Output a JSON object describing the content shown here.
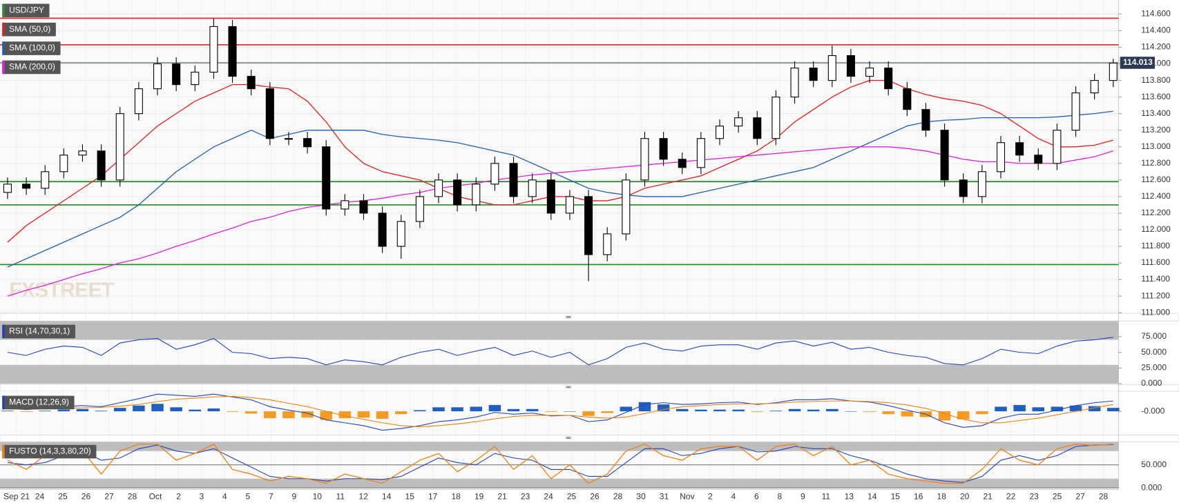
{
  "chart_data": {
    "type": "candlestick",
    "symbol": "USD/JPY",
    "ylim": [
      111,
      114.77
    ],
    "yticks": [
      {
        "value": 111,
        "label": "111.000"
      },
      {
        "value": 111.2,
        "label": "111.200"
      },
      {
        "value": 111.4,
        "label": "111.400"
      },
      {
        "value": 111.6,
        "label": "111.600"
      },
      {
        "value": 111.8,
        "label": "111.800"
      },
      {
        "value": 112,
        "label": "112.000"
      },
      {
        "value": 112.2,
        "label": "112.200"
      },
      {
        "value": 112.4,
        "label": "112.400"
      },
      {
        "value": 112.6,
        "label": "112.600"
      },
      {
        "value": 112.8,
        "label": "112.800"
      },
      {
        "value": 113,
        "label": "113.000"
      },
      {
        "value": 113.2,
        "label": "113.200"
      },
      {
        "value": 113.4,
        "label": "113.400"
      },
      {
        "value": 113.6,
        "label": "113.600"
      },
      {
        "value": 113.8,
        "label": "113.800"
      },
      {
        "value": 114,
        "label": "114.000"
      },
      {
        "value": 114.2,
        "label": "114.200"
      },
      {
        "value": 114.4,
        "label": "114.400"
      },
      {
        "value": 114.6,
        "label": "114.600"
      }
    ],
    "last": {
      "value": 114.013,
      "label": "114.013"
    },
    "colors": {
      "up": "#ffffff",
      "down": "#000000",
      "wick": "#000000"
    },
    "levels": [
      {
        "value": 114.55,
        "color": "#e02020"
      },
      {
        "value": 114.23,
        "color": "#e02020"
      },
      {
        "value": 112.58,
        "color": "#1a8a1a"
      },
      {
        "value": 112.3,
        "color": "#1a8a1a"
      },
      {
        "value": 111.58,
        "color": "#1a8a1a"
      }
    ],
    "xlabels": [
      "Sep 21",
      "24",
      "25",
      "26",
      "27",
      "28",
      "Oct",
      "2",
      "3",
      "4",
      "5",
      "7",
      "9",
      "10",
      "11",
      "12",
      "14",
      "15",
      "17",
      "18",
      "19",
      "21",
      "23",
      "24",
      "25",
      "26",
      "28",
      "30",
      "31",
      "Nov",
      "2",
      "4",
      "6",
      "8",
      "9",
      "11",
      "13",
      "14",
      "15",
      "16",
      "18",
      "20",
      "21",
      "22",
      "23",
      "25",
      "27",
      "28"
    ],
    "open": [
      112.45,
      112.55,
      112.5,
      112.7,
      112.9,
      112.95,
      112.6,
      113.4,
      113.7,
      114.0,
      113.75,
      113.9,
      114.45,
      113.85,
      113.7,
      113.1,
      113.1,
      113.0,
      112.25,
      112.35,
      112.2,
      111.8,
      112.1,
      112.4,
      112.6,
      112.3,
      112.55,
      112.8,
      112.4,
      112.6,
      112.2,
      112.4,
      111.7,
      111.95,
      112.6,
      113.1,
      112.85,
      112.75,
      113.1,
      113.25,
      113.35,
      113.1,
      113.6,
      113.95,
      113.8,
      114.1,
      113.85,
      113.95,
      113.7,
      113.45,
      113.2,
      112.6,
      112.4,
      112.7,
      113.05,
      112.9,
      112.8,
      113.2,
      113.65,
      113.8
    ],
    "high": [
      112.63,
      112.63,
      112.78,
      112.98,
      113.03,
      113.03,
      113.48,
      113.78,
      114.08,
      114.08,
      113.98,
      114.55,
      114.53,
      113.93,
      113.78,
      113.18,
      113.18,
      113.08,
      112.43,
      112.43,
      112.28,
      112.18,
      112.48,
      112.68,
      112.68,
      112.63,
      112.88,
      112.88,
      112.68,
      112.68,
      112.48,
      112.48,
      112.03,
      112.68,
      113.18,
      113.18,
      112.93,
      113.18,
      113.33,
      113.43,
      113.43,
      113.68,
      114.03,
      114.03,
      114.22,
      114.18,
      114.03,
      114.03,
      113.78,
      113.53,
      113.28,
      112.68,
      112.78,
      113.13,
      113.13,
      112.98,
      113.28,
      113.73,
      113.88,
      114.06
    ],
    "low": [
      112.37,
      112.42,
      112.42,
      112.62,
      112.82,
      112.52,
      112.52,
      113.32,
      113.62,
      113.67,
      113.67,
      113.82,
      113.77,
      113.62,
      113.02,
      113.02,
      112.92,
      112.17,
      112.17,
      112.12,
      111.72,
      111.65,
      112.02,
      112.32,
      112.22,
      112.22,
      112.47,
      112.32,
      112.32,
      112.12,
      112.12,
      111.38,
      111.62,
      111.87,
      112.52,
      112.77,
      112.67,
      112.67,
      113.02,
      113.17,
      113.02,
      113.02,
      113.52,
      113.72,
      113.72,
      113.77,
      113.77,
      113.62,
      113.37,
      113.12,
      112.52,
      112.32,
      112.32,
      112.62,
      112.82,
      112.72,
      112.72,
      113.12,
      113.57,
      113.72
    ],
    "close": [
      112.55,
      112.5,
      112.7,
      112.9,
      112.95,
      112.6,
      113.4,
      113.7,
      114.0,
      113.75,
      113.9,
      114.45,
      113.85,
      113.7,
      113.1,
      113.1,
      113.0,
      112.25,
      112.35,
      112.2,
      111.8,
      112.1,
      112.4,
      112.6,
      112.3,
      112.55,
      112.8,
      112.4,
      112.6,
      112.2,
      112.4,
      111.7,
      111.95,
      112.6,
      113.1,
      112.85,
      112.75,
      113.1,
      113.25,
      113.35,
      113.1,
      113.6,
      113.95,
      113.8,
      114.1,
      113.85,
      113.95,
      113.7,
      113.45,
      113.2,
      112.6,
      112.4,
      112.7,
      113.05,
      112.9,
      112.8,
      113.2,
      113.65,
      113.8,
      114.01
    ],
    "series": [
      {
        "name": "USD/JPY",
        "color": "#2e8b2e",
        "legend_only": true
      },
      {
        "name": "SMA (50,0)",
        "color": "#e02020",
        "values": [
          111.85,
          112.05,
          112.2,
          112.35,
          112.5,
          112.65,
          112.85,
          113.05,
          113.25,
          113.4,
          113.55,
          113.65,
          113.75,
          113.75,
          113.72,
          113.7,
          113.55,
          113.3,
          113.0,
          112.8,
          112.7,
          112.65,
          112.6,
          112.5,
          112.4,
          112.35,
          112.3,
          112.3,
          112.35,
          112.4,
          112.4,
          112.35,
          112.35,
          112.4,
          112.5,
          112.55,
          112.6,
          112.65,
          112.75,
          112.85,
          112.95,
          113.1,
          113.3,
          113.45,
          113.6,
          113.72,
          113.8,
          113.8,
          113.7,
          113.63,
          113.58,
          113.55,
          113.5,
          113.4,
          113.25,
          113.1,
          113.0,
          113.0,
          113.02,
          113.08
        ]
      },
      {
        "name": "SMA (100,0)",
        "color": "#2060b0",
        "values": [
          111.55,
          111.65,
          111.75,
          111.85,
          111.95,
          112.05,
          112.15,
          112.3,
          112.5,
          112.7,
          112.85,
          113.0,
          113.1,
          113.2,
          113.1,
          113.15,
          113.2,
          113.2,
          113.2,
          113.2,
          113.15,
          113.12,
          113.1,
          113.08,
          113.05,
          113.0,
          112.95,
          112.9,
          112.8,
          112.7,
          112.6,
          112.5,
          112.45,
          112.42,
          112.4,
          112.4,
          112.4,
          112.45,
          112.5,
          112.55,
          112.6,
          112.65,
          112.7,
          112.75,
          112.85,
          112.95,
          113.05,
          113.15,
          113.25,
          113.3,
          113.32,
          113.33,
          113.35,
          113.35,
          113.35,
          113.35,
          113.36,
          113.38,
          113.4,
          113.43
        ]
      },
      {
        "name": "SMA (200,0)",
        "color": "#e020e0",
        "values": [
          111.2,
          111.27,
          111.33,
          111.4,
          111.47,
          111.53,
          111.6,
          111.65,
          111.72,
          111.8,
          111.87,
          111.95,
          112.02,
          112.1,
          112.15,
          112.22,
          112.27,
          112.3,
          112.33,
          112.35,
          112.38,
          112.42,
          112.45,
          112.5,
          112.53,
          112.56,
          112.6,
          112.63,
          112.66,
          112.68,
          112.7,
          112.72,
          112.74,
          112.76,
          112.78,
          112.8,
          112.82,
          112.84,
          112.86,
          112.88,
          112.9,
          112.92,
          112.94,
          112.96,
          112.98,
          113.0,
          113.0,
          113.0,
          112.98,
          112.95,
          112.9,
          112.85,
          112.82,
          112.82,
          112.8,
          112.8,
          112.8,
          112.84,
          112.88,
          112.95
        ]
      }
    ],
    "watermark": "FXSTREET"
  },
  "rsi": {
    "name": "RSI (14,70,30,1)",
    "color": "#2040c0",
    "ylim": [
      0,
      100
    ],
    "bands": [
      30,
      70
    ],
    "yticks": [
      {
        "value": 0,
        "label": "0.000"
      },
      {
        "value": 25,
        "label": "25.000"
      },
      {
        "value": 50,
        "label": "50.000"
      },
      {
        "value": 75,
        "label": "75.000"
      }
    ],
    "values": [
      50,
      45,
      55,
      60,
      58,
      45,
      65,
      70,
      72,
      55,
      62,
      72,
      50,
      48,
      40,
      42,
      40,
      30,
      38,
      35,
      30,
      42,
      50,
      55,
      45,
      52,
      58,
      45,
      52,
      42,
      50,
      30,
      40,
      58,
      65,
      55,
      52,
      60,
      62,
      62,
      55,
      65,
      68,
      60,
      66,
      55,
      58,
      50,
      45,
      42,
      32,
      30,
      40,
      55,
      50,
      48,
      60,
      68,
      70,
      74
    ]
  },
  "macd": {
    "name": "MACD (12,26,9)",
    "ylim": [
      -0.4,
      0.35
    ],
    "yticks": [
      {
        "value": 0,
        "label": "-0.000"
      }
    ],
    "colors": {
      "macd": "#2040c0",
      "signal": "#f08010",
      "up": "#1f5fbf",
      "down": "#f59a23"
    },
    "macd_values": [
      0.05,
      0.03,
      0.05,
      0.08,
      0.1,
      0.08,
      0.15,
      0.22,
      0.3,
      0.28,
      0.26,
      0.3,
      0.25,
      0.2,
      0.08,
      0.02,
      -0.03,
      -0.15,
      -0.2,
      -0.25,
      -0.33,
      -0.3,
      -0.25,
      -0.18,
      -0.15,
      -0.1,
      -0.02,
      -0.05,
      -0.03,
      -0.08,
      -0.07,
      -0.18,
      -0.15,
      -0.02,
      0.12,
      0.15,
      0.12,
      0.13,
      0.15,
      0.16,
      0.12,
      0.15,
      0.2,
      0.2,
      0.22,
      0.18,
      0.16,
      0.1,
      0.02,
      -0.05,
      -0.2,
      -0.28,
      -0.25,
      -0.12,
      -0.05,
      -0.05,
      0.02,
      0.1,
      0.15,
      0.18
    ],
    "signal_values": [
      0.04,
      0.04,
      0.04,
      0.05,
      0.06,
      0.07,
      0.09,
      0.12,
      0.17,
      0.21,
      0.23,
      0.25,
      0.26,
      0.24,
      0.2,
      0.14,
      0.08,
      0.0,
      -0.08,
      -0.14,
      -0.2,
      -0.25,
      -0.27,
      -0.25,
      -0.22,
      -0.18,
      -0.13,
      -0.09,
      -0.07,
      -0.07,
      -0.07,
      -0.1,
      -0.12,
      -0.1,
      -0.04,
      0.03,
      0.08,
      0.1,
      0.12,
      0.13,
      0.13,
      0.14,
      0.16,
      0.17,
      0.18,
      0.18,
      0.17,
      0.15,
      0.11,
      0.05,
      -0.04,
      -0.14,
      -0.2,
      -0.2,
      -0.16,
      -0.12,
      -0.06,
      0.0,
      0.06,
      0.12
    ],
    "histogram": [
      0.01,
      -0.01,
      0.01,
      0.03,
      0.04,
      0.01,
      0.06,
      0.1,
      0.13,
      0.07,
      0.03,
      0.05,
      -0.01,
      -0.04,
      -0.12,
      -0.12,
      -0.11,
      -0.15,
      -0.12,
      -0.11,
      -0.13,
      -0.05,
      0.02,
      0.07,
      0.07,
      0.08,
      0.11,
      0.04,
      0.04,
      -0.01,
      0.0,
      -0.08,
      -0.03,
      0.08,
      0.16,
      0.12,
      0.04,
      0.03,
      0.03,
      0.03,
      -0.01,
      0.01,
      0.04,
      0.03,
      0.04,
      0.0,
      -0.01,
      -0.05,
      -0.09,
      -0.1,
      -0.16,
      -0.14,
      -0.05,
      0.08,
      0.11,
      0.07,
      0.08,
      0.1,
      0.09,
      0.06
    ]
  },
  "stoch": {
    "name": "FUSTO (14,3,3,80,20)",
    "ylim": [
      0,
      100
    ],
    "bands": [
      20,
      80
    ],
    "yticks": [
      {
        "value": 0,
        "label": "0.000"
      },
      {
        "value": 50,
        "label": "50.000"
      }
    ],
    "colors": {
      "k": "#f08010",
      "d": "#2040c0"
    },
    "k": [
      60,
      40,
      70,
      85,
      80,
      30,
      80,
      95,
      95,
      60,
      75,
      95,
      40,
      30,
      15,
      25,
      20,
      10,
      30,
      20,
      10,
      35,
      60,
      75,
      35,
      60,
      90,
      40,
      70,
      20,
      50,
      10,
      30,
      80,
      95,
      70,
      60,
      85,
      90,
      90,
      60,
      90,
      95,
      70,
      90,
      50,
      60,
      30,
      20,
      15,
      10,
      10,
      40,
      85,
      60,
      50,
      85,
      95,
      92,
      95
    ],
    "d": [
      55,
      50,
      55,
      70,
      80,
      60,
      65,
      85,
      93,
      80,
      75,
      85,
      65,
      45,
      25,
      20,
      20,
      15,
      20,
      20,
      18,
      25,
      45,
      65,
      55,
      50,
      75,
      65,
      60,
      40,
      40,
      25,
      25,
      55,
      85,
      85,
      70,
      75,
      85,
      90,
      78,
      80,
      90,
      85,
      85,
      70,
      60,
      45,
      30,
      20,
      15,
      12,
      25,
      60,
      70,
      60,
      70,
      90,
      93,
      94
    ]
  }
}
